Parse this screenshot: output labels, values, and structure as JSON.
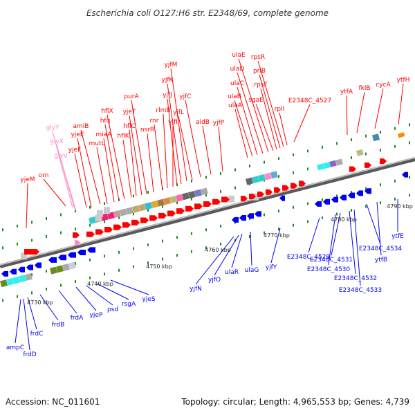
{
  "title": "Escherichia coli O127:H6 str. E2348/69, complete genome",
  "accession": "Accession: NC_011601",
  "summary": "Topology: circular; Length: 4,965,553 bp; Genes: 4,739",
  "colors": {
    "forward_gene": "#ff0000",
    "reverse_gene": "#0000ee",
    "rna_gene": "#ff88cc",
    "backbone": "#888888",
    "tick_mark": "#1a8a1a"
  },
  "kbp_labels": [
    "4730 kbp",
    "4740 kbp",
    "4750 kbp",
    "4760 kbp",
    "4770 kbp",
    "4780 kbp",
    "4790 kbp"
  ],
  "forward_genes": [
    "yjeM",
    "orn",
    "glyY",
    "glyX",
    "glyV",
    "yjeF",
    "yjeE",
    "amiB",
    "mutL",
    "miaA",
    "hfq",
    "hflX",
    "hflK",
    "hflC",
    "yjeT",
    "purA",
    "nsrR",
    "rnr",
    "rlmB",
    "yjfI",
    "yjfJ",
    "yjfK",
    "yjfM",
    "yjfL",
    "yjfC",
    "aidB",
    "yjfP",
    "ulaA",
    "ulaB",
    "ulaC",
    "ulaD",
    "ulaE",
    "sgaE",
    "rpsF",
    "priB",
    "rpsR",
    "rplI",
    "E2348C_4527",
    "ytfA",
    "fklB",
    "cycA",
    "ytfH"
  ],
  "reverse_genes": [
    "ampC",
    "frdD",
    "frdC",
    "frdB",
    "frdA",
    "yjeP",
    "psd",
    "rsgA",
    "yjeS",
    "yjfN",
    "yjfO",
    "ulaR",
    "ulaG",
    "yjfY",
    "E2348C_4529",
    "E2348C_4530",
    "E2348C_4531",
    "E2348C_4532",
    "E2348C_4533",
    "E2348C_4534",
    "ytfB",
    "ytfE"
  ]
}
